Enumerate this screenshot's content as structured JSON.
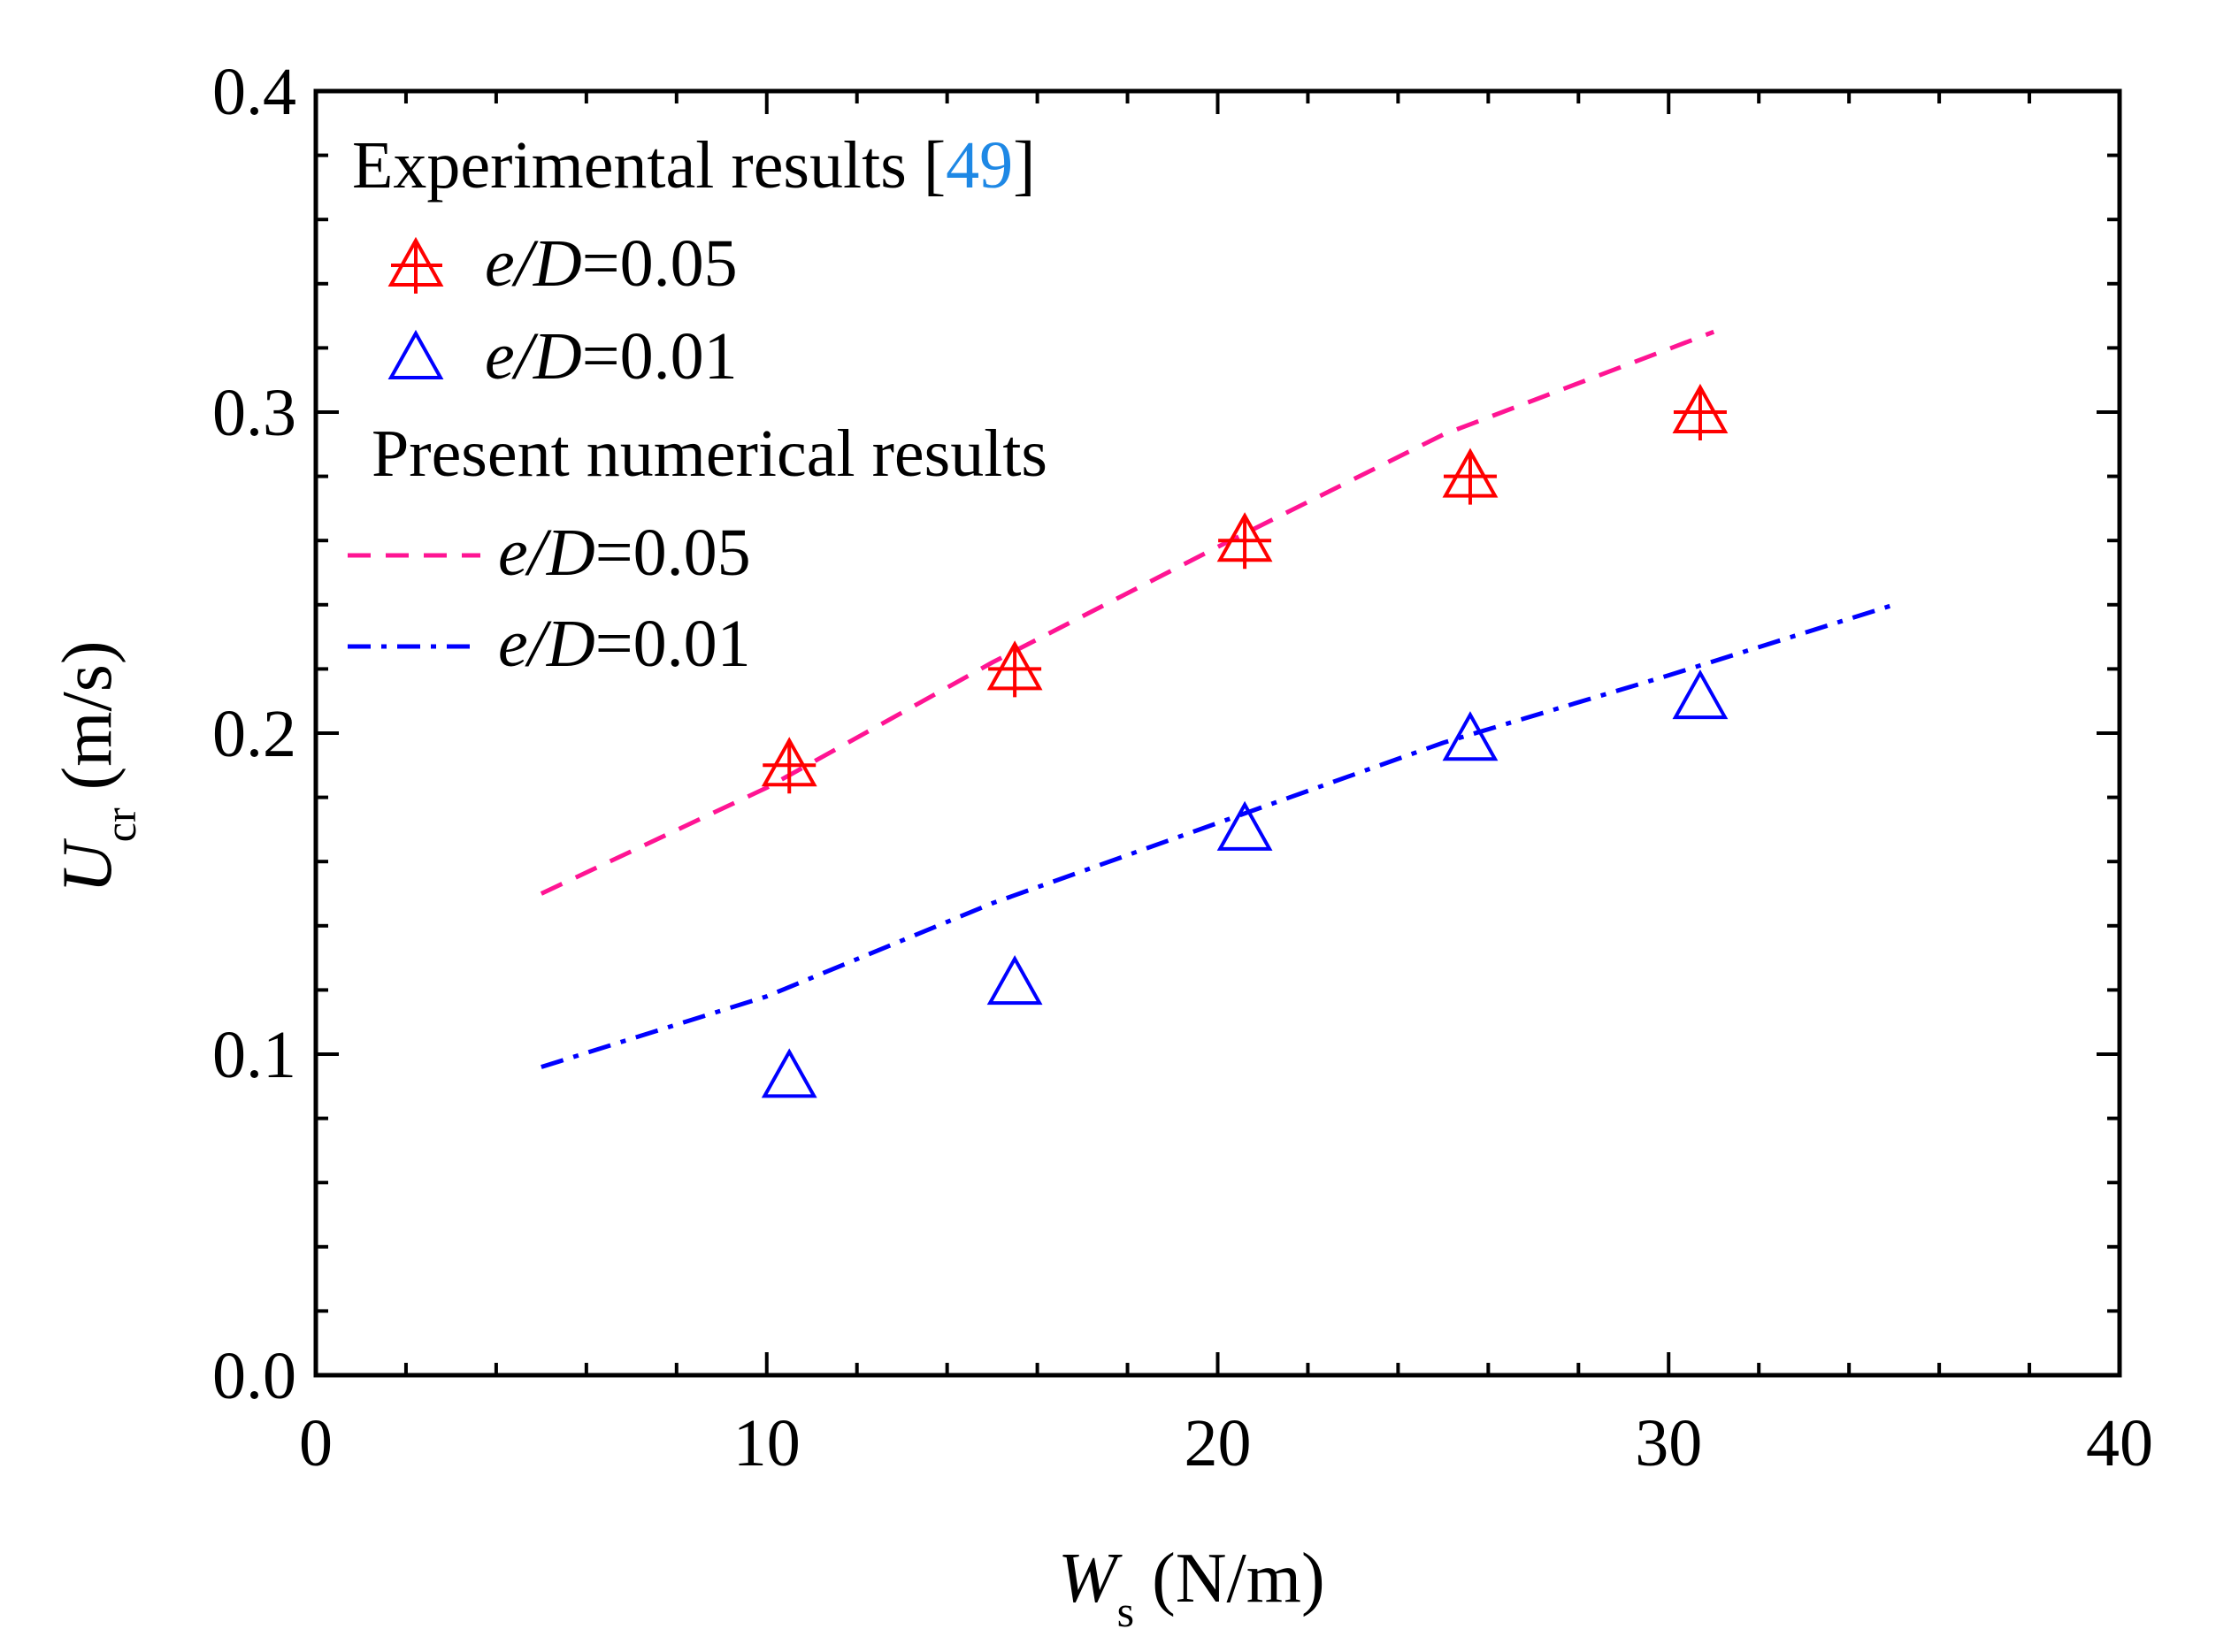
{
  "chart_data": {
    "type": "scatter",
    "x_axis": {
      "label_main": "W",
      "label_sub": "s",
      "label_unit": " (N/m)",
      "range": [
        0,
        40
      ],
      "ticks": [
        0,
        10,
        20,
        30,
        40
      ],
      "tick_labels": [
        "0",
        "10",
        "20",
        "30",
        "40"
      ]
    },
    "y_axis": {
      "label_main": "U",
      "label_sub": "cr",
      "label_unit": " (m/s)",
      "range": [
        0,
        0.4
      ],
      "ticks": [
        0,
        0.1,
        0.2,
        0.3,
        0.4
      ],
      "tick_labels": [
        "0.0",
        "0.1",
        "0.2",
        "0.3",
        "0.4"
      ]
    },
    "legend": {
      "group1_title_prefix": "Experimental results [",
      "group1_ref": "49",
      "group1_title_suffix": "]",
      "group2_title": "Present numerical results",
      "entry_label_italic": "e/D",
      "exp_005_value": "=0.05",
      "exp_001_value": "=0.01",
      "num_005_value": "=0.05",
      "num_001_value": "=0.01"
    },
    "series": [
      {
        "name": "Experimental e/D=0.05",
        "kind": "marker",
        "marker": "triangle-plus",
        "color": "#ff0000",
        "x": [
          10.5,
          15.5,
          20.6,
          25.6,
          30.7
        ],
        "y": [
          0.19,
          0.22,
          0.26,
          0.28,
          0.3
        ]
      },
      {
        "name": "Experimental e/D=0.01",
        "kind": "marker",
        "marker": "triangle",
        "color": "#0000ff",
        "x": [
          10.5,
          15.5,
          20.6,
          25.6,
          30.7
        ],
        "y": [
          0.093,
          0.122,
          0.17,
          0.198,
          0.211
        ]
      },
      {
        "name": "Numerical e/D=0.05",
        "kind": "line",
        "dash": "dash",
        "color": "#ff1493",
        "x": [
          5,
          10,
          15,
          20,
          25,
          31
        ],
        "y": [
          0.15,
          0.183,
          0.222,
          0.258,
          0.293,
          0.325
        ]
      },
      {
        "name": "Numerical e/D=0.01",
        "kind": "line",
        "dash": "dash-dot",
        "color": "#0000ff",
        "x": [
          5,
          10,
          15,
          20,
          25,
          30,
          35
        ],
        "y": [
          0.096,
          0.118,
          0.147,
          0.172,
          0.197,
          0.218,
          0.24
        ]
      }
    ]
  }
}
